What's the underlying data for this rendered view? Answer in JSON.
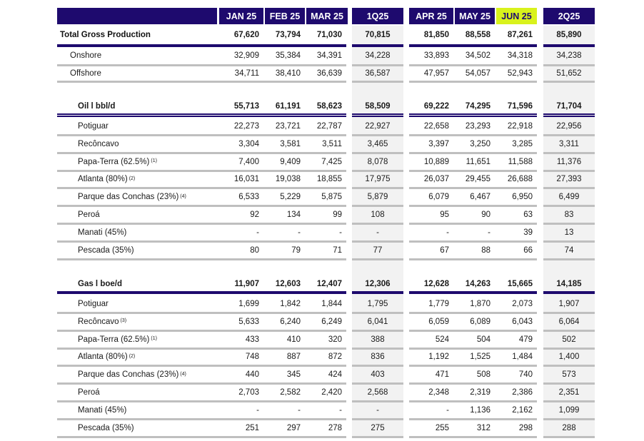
{
  "headers": {
    "months_q1": [
      "JAN 25",
      "FEB 25",
      "MAR 25"
    ],
    "q1": "1Q25",
    "months_q2": [
      "APR 25",
      "MAY 25",
      "JUN 25"
    ],
    "q2": "2Q25"
  },
  "colors": {
    "header_bg": "#1e0a6e",
    "highlight_bg": "#d9f21c",
    "quarter_bg": "#f2f2f2",
    "separator": "#bfbfbf"
  },
  "total": {
    "label": "Total Gross Production",
    "values": [
      "67,620",
      "73,794",
      "71,030",
      "70,815",
      "81,850",
      "88,558",
      "87,261",
      "85,890"
    ],
    "rows": [
      {
        "label": "Onshore",
        "values": [
          "32,909",
          "35,384",
          "34,391",
          "34,228",
          "33,893",
          "34,502",
          "34,318",
          "34,238"
        ]
      },
      {
        "label": "Offshore",
        "values": [
          "34,711",
          "38,410",
          "36,639",
          "36,587",
          "47,957",
          "54,057",
          "52,943",
          "51,652"
        ]
      }
    ]
  },
  "oil": {
    "label": "Oil l bbl/d",
    "values": [
      "55,713",
      "61,191",
      "58,623",
      "58,509",
      "69,222",
      "74,295",
      "71,596",
      "71,704"
    ],
    "rows": [
      {
        "label": "Potiguar",
        "note": "",
        "values": [
          "22,273",
          "23,721",
          "22,787",
          "22,927",
          "22,658",
          "23,293",
          "22,918",
          "22,956"
        ]
      },
      {
        "label": "Recôncavo",
        "note": "",
        "values": [
          "3,304",
          "3,581",
          "3,511",
          "3,465",
          "3,397",
          "3,250",
          "3,285",
          "3,311"
        ]
      },
      {
        "label": "Papa-Terra (62.5%)",
        "note": "(1)",
        "values": [
          "7,400",
          "9,409",
          "7,425",
          "8,078",
          "10,889",
          "11,651",
          "11,588",
          "11,376"
        ]
      },
      {
        "label": "Atlanta (80%)",
        "note": "(2)",
        "values": [
          "16,031",
          "19,038",
          "18,855",
          "17,975",
          "26,037",
          "29,455",
          "26,688",
          "27,393"
        ]
      },
      {
        "label": "Parque das Conchas (23%)",
        "note": "(4)",
        "values": [
          "6,533",
          "5,229",
          "5,875",
          "5,879",
          "6,079",
          "6,467",
          "6,950",
          "6,499"
        ]
      },
      {
        "label": "Peroá",
        "note": "",
        "values": [
          "92",
          "134",
          "99",
          "108",
          "95",
          "90",
          "63",
          "83"
        ]
      },
      {
        "label": "Manati (45%)",
        "note": "",
        "values": [
          "-",
          "-",
          "-",
          "-",
          "-",
          "-",
          "39",
          "13"
        ]
      },
      {
        "label": "Pescada (35%)",
        "note": "",
        "values": [
          "80",
          "79",
          "71",
          "77",
          "67",
          "88",
          "66",
          "74"
        ]
      }
    ]
  },
  "gas": {
    "label": "Gas l boe/d",
    "values": [
      "11,907",
      "12,603",
      "12,407",
      "12,306",
      "12,628",
      "14,263",
      "15,665",
      "14,185"
    ],
    "rows": [
      {
        "label": "Potiguar",
        "note": "",
        "values": [
          "1,699",
          "1,842",
          "1,844",
          "1,795",
          "1,779",
          "1,870",
          "2,073",
          "1,907"
        ]
      },
      {
        "label": "Recôncavo",
        "note": "(3)",
        "values": [
          "5,633",
          "6,240",
          "6,249",
          "6,041",
          "6,059",
          "6,089",
          "6,043",
          "6,064"
        ]
      },
      {
        "label": "Papa-Terra (62.5%)",
        "note": "(1)",
        "values": [
          "433",
          "410",
          "320",
          "388",
          "524",
          "504",
          "479",
          "502"
        ]
      },
      {
        "label": "Atlanta (80%)",
        "note": "(2)",
        "values": [
          "748",
          "887",
          "872",
          "836",
          "1,192",
          "1,525",
          "1,484",
          "1,400"
        ]
      },
      {
        "label": "Parque das Conchas (23%)",
        "note": "(4)",
        "values": [
          "440",
          "345",
          "424",
          "403",
          "471",
          "508",
          "740",
          "573"
        ]
      },
      {
        "label": "Peroá",
        "note": "",
        "values": [
          "2,703",
          "2,582",
          "2,420",
          "2,568",
          "2,348",
          "2,319",
          "2,386",
          "2,351"
        ]
      },
      {
        "label": "Manati (45%)",
        "note": "",
        "values": [
          "-",
          "-",
          "-",
          "-",
          "-",
          "1,136",
          "2,162",
          "1,099"
        ]
      },
      {
        "label": "Pescada (35%)",
        "note": "",
        "values": [
          "251",
          "297",
          "278",
          "275",
          "255",
          "312",
          "298",
          "288"
        ]
      }
    ]
  }
}
